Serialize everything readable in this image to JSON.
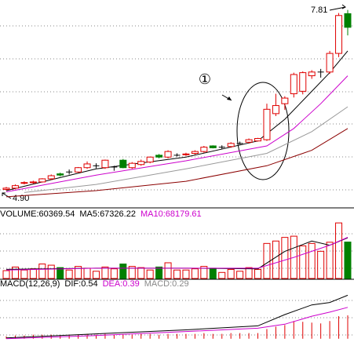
{
  "chart_data": [
    {
      "type": "candlestick",
      "xlim": [
        -0.7,
        38.7
      ],
      "ylim": [
        4.66,
        7.97
      ],
      "up_color": "#e00000",
      "down_color": "#008000",
      "open": [
        4.92,
        4.94,
        5.02,
        5.03,
        5.04,
        5.09,
        5.17,
        5.2,
        5.2,
        5.27,
        5.3,
        5.27,
        5.28,
        5.39,
        5.27,
        5.32,
        5.36,
        5.47,
        5.44,
        5.47,
        5.48,
        5.5,
        5.53,
        5.62,
        5.6,
        5.61,
        5.66,
        5.68,
        5.7,
        5.72,
        6.14,
        6.3,
        6.46,
        6.5,
        6.75,
        6.81,
        6.81,
        7.11,
        7.75
      ],
      "high": [
        4.96,
        5.0,
        5.05,
        5.06,
        5.1,
        5.16,
        5.19,
        5.24,
        5.28,
        5.37,
        5.34,
        5.4,
        5.3,
        5.41,
        5.36,
        5.4,
        5.45,
        5.49,
        5.55,
        5.5,
        5.51,
        5.55,
        5.62,
        5.63,
        5.63,
        5.68,
        5.69,
        5.74,
        5.75,
        6.3,
        6.46,
        6.42,
        6.8,
        6.82,
        6.84,
        6.86,
        7.15,
        7.76,
        7.81
      ],
      "low": [
        4.9,
        4.92,
        5.0,
        5.01,
        5.03,
        5.07,
        5.13,
        5.16,
        5.19,
        5.25,
        5.26,
        5.25,
        5.22,
        5.26,
        5.25,
        5.3,
        5.34,
        5.42,
        5.42,
        5.45,
        5.46,
        5.48,
        5.51,
        5.58,
        5.57,
        5.59,
        5.64,
        5.66,
        5.69,
        5.7,
        6.1,
        6.2,
        6.4,
        6.45,
        6.7,
        6.72,
        6.78,
        7.05,
        7.4
      ],
      "close": [
        4.94,
        4.98,
        5.03,
        5.04,
        5.09,
        5.14,
        5.15,
        5.2,
        5.27,
        5.33,
        5.3,
        5.39,
        5.28,
        5.27,
        5.34,
        5.37,
        5.44,
        5.44,
        5.53,
        5.47,
        5.49,
        5.53,
        5.6,
        5.59,
        5.6,
        5.66,
        5.66,
        5.72,
        5.74,
        6.21,
        6.27,
        6.39,
        6.77,
        6.8,
        6.81,
        6.81,
        7.11,
        7.72,
        7.53
      ],
      "lines": [
        {
          "color": "#000000",
          "x": [
            0,
            10,
            20,
            28,
            31,
            34,
            36,
            38
          ],
          "values": [
            4.9,
            5.25,
            5.44,
            5.7,
            6.05,
            6.5,
            6.8,
            7.15
          ]
        },
        {
          "color": "#cc00cc",
          "x": [
            0,
            10,
            20,
            29,
            32,
            35,
            38
          ],
          "values": [
            4.88,
            5.15,
            5.38,
            5.62,
            5.9,
            6.3,
            6.75
          ]
        },
        {
          "color": "#999999",
          "x": [
            2,
            10,
            20,
            29,
            34,
            38
          ],
          "values": [
            4.87,
            5.0,
            5.25,
            5.5,
            5.85,
            6.25
          ]
        },
        {
          "color": "#8b0000",
          "x": [
            0,
            10,
            20,
            29,
            34,
            38
          ],
          "values": [
            4.8,
            4.9,
            5.05,
            5.3,
            5.55,
            5.9
          ]
        }
      ],
      "high_label": "7.81",
      "low_label": "4.90",
      "circle_label": "①"
    },
    {
      "type": "volume",
      "xlim": [
        -0.7,
        38.7
      ],
      "ylim": [
        0,
        100000
      ],
      "legend": [
        {
          "text": "VOLUME:60369.54",
          "color": "#000000"
        },
        {
          "text": "MA5:67326.22",
          "color": "#000000"
        },
        {
          "text": "MA10:68179.61",
          "color": "#cc00cc"
        }
      ],
      "values": [
        13000,
        19000,
        14000,
        16000,
        24000,
        22000,
        18000,
        14000,
        20000,
        17000,
        12000,
        19000,
        16000,
        24000,
        20000,
        18000,
        14000,
        19000,
        26000,
        14000,
        14000,
        16000,
        20000,
        17000,
        10000,
        15000,
        12000,
        18000,
        15000,
        58000,
        62000,
        68000,
        70000,
        54000,
        58000,
        45000,
        60000,
        92000,
        60369.54
      ],
      "lines": [
        {
          "color": "#000000",
          "x": [
            0,
            10,
            20,
            28,
            31,
            34,
            36,
            38
          ],
          "values": [
            15000,
            17000,
            17000,
            16000,
            45000,
            62000,
            55000,
            67326.22
          ]
        },
        {
          "color": "#cc00cc",
          "x": [
            0,
            10,
            20,
            28,
            32,
            36,
            38
          ],
          "values": [
            14000,
            17000,
            17000,
            17000,
            35000,
            55000,
            68179.61
          ]
        }
      ]
    },
    {
      "type": "macd",
      "xlim": [
        -0.7,
        38.7
      ],
      "ylim": [
        -0.08,
        0.68
      ],
      "color": "#e00000",
      "legend": [
        {
          "text": "MACD(12,26,9)",
          "color": "#000000"
        },
        {
          "text": "DIF:0.54",
          "color": "#000000"
        },
        {
          "text": "DEA:0.39",
          "color": "#cc00cc"
        },
        {
          "text": "MACD:0.29",
          "color": "#888888"
        }
      ],
      "values": [
        0.03,
        0.04,
        0.04,
        0.05,
        0.05,
        0.05,
        0.04,
        0.05,
        0.05,
        0.06,
        0.05,
        0.06,
        0.05,
        0.05,
        0.05,
        0.06,
        0.06,
        0.05,
        0.06,
        0.06,
        0.06,
        0.06,
        0.07,
        0.06,
        0.06,
        0.07,
        0.07,
        0.07,
        0.07,
        0.12,
        0.15,
        0.17,
        0.22,
        0.21,
        0.2,
        0.19,
        0.22,
        0.28,
        0.29
      ],
      "lines": [
        {
          "color": "#000000",
          "x": [
            0,
            10,
            20,
            28,
            31,
            34,
            36,
            38
          ],
          "values": [
            0.01,
            0.06,
            0.11,
            0.16,
            0.3,
            0.42,
            0.45,
            0.54
          ]
        },
        {
          "color": "#cc00cc",
          "x": [
            0,
            10,
            20,
            28,
            31,
            34,
            36,
            38
          ],
          "values": [
            0.0,
            0.04,
            0.09,
            0.13,
            0.18,
            0.28,
            0.33,
            0.39
          ]
        }
      ]
    }
  ]
}
